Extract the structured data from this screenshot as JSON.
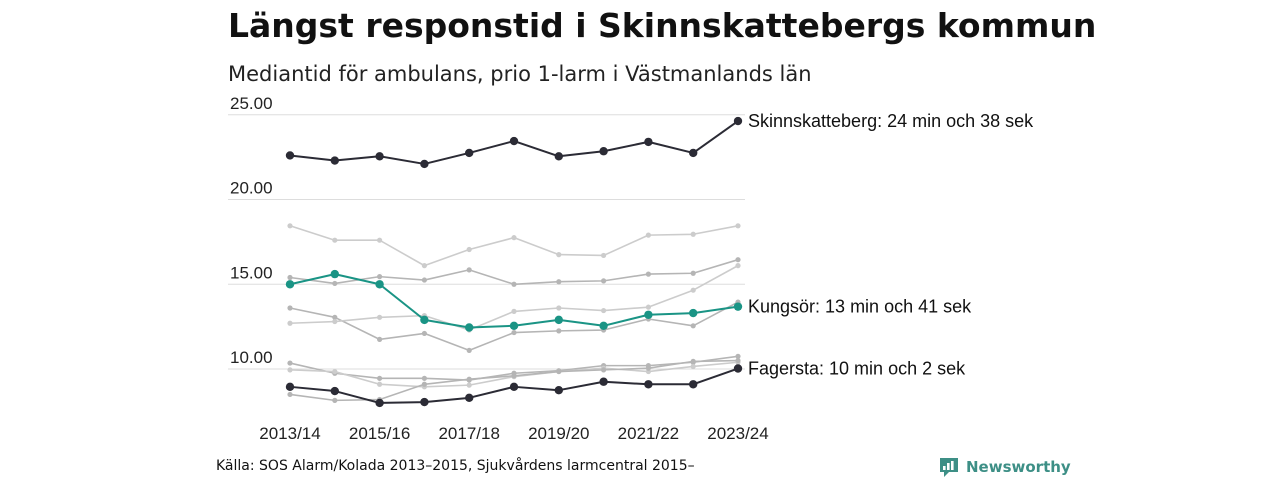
{
  "title": "Längst responstid i Skinnskattebergs kommun",
  "subtitle": "Mediantid för ambulans, prio 1-larm i Västmanlands län",
  "source": "Källa: SOS Alarm/Kolada 2013–2015, Sjukvårdens larmcentral 2015–",
  "brand": {
    "name": "Newsworthy",
    "icon": "newsworthy-logo-icon",
    "color": "#3d8f86"
  },
  "chart_data": {
    "type": "line",
    "x": [
      "2013/14",
      "2014/15",
      "2015/16",
      "2016/17",
      "2017/18",
      "2018/19",
      "2019/20",
      "2020/21",
      "2021/22",
      "2022/23",
      "2023/24"
    ],
    "x_tick_labels": [
      "2013/14",
      "2015/16",
      "2017/18",
      "2019/20",
      "2021/22",
      "2023/24"
    ],
    "y_ticks": [
      10,
      15,
      20,
      25
    ],
    "y_tick_labels": [
      "10.00",
      "15.00",
      "20.00",
      "25.00"
    ],
    "ylim": [
      7.7,
      25.4
    ],
    "grid": "horizontal",
    "series": [
      {
        "values": [
          18.45,
          17.6,
          17.6,
          16.1,
          17.05,
          17.75,
          16.75,
          16.7,
          17.9,
          17.95,
          18.45
        ],
        "color": "#cccccc",
        "highlight": false
      },
      {
        "values": [
          15.4,
          15.05,
          15.45,
          15.25,
          15.85,
          15.0,
          15.15,
          15.2,
          15.6,
          15.65,
          16.45
        ],
        "color": "#b5b5b5",
        "highlight": false
      },
      {
        "values": [
          13.6,
          13.05,
          11.75,
          12.1,
          11.1,
          12.15,
          12.25,
          12.3,
          12.95,
          12.55,
          13.95
        ],
        "color": "#b5b5b5",
        "highlight": false
      },
      {
        "values": [
          12.7,
          12.8,
          13.05,
          13.15,
          12.3,
          13.4,
          13.6,
          13.45,
          13.65,
          14.65,
          16.1
        ],
        "color": "#cccccc",
        "highlight": false
      },
      {
        "values": [
          10.35,
          9.75,
          9.45,
          9.45,
          9.35,
          9.75,
          9.9,
          10.2,
          10.2,
          10.4,
          10.75
        ],
        "color": "#b5b5b5",
        "highlight": false
      },
      {
        "values": [
          9.95,
          9.85,
          9.1,
          8.95,
          9.05,
          9.55,
          9.85,
          10.05,
          9.85,
          10.15,
          10.4
        ],
        "color": "#cccccc",
        "highlight": false
      },
      {
        "values": [
          8.5,
          8.15,
          8.2,
          9.1,
          9.4,
          9.6,
          9.85,
          9.95,
          10.05,
          10.45,
          10.5
        ],
        "color": "#b5b5b5",
        "highlight": false
      },
      {
        "name": "Kungsör",
        "values": [
          15.0,
          15.6,
          15.0,
          12.9,
          12.45,
          12.55,
          12.9,
          12.55,
          13.2,
          13.3,
          13.68
        ],
        "color": "#1a9485",
        "highlight": true,
        "label": "Kungsör: 13 min och 41 sek"
      },
      {
        "name": "Skinnskatteberg",
        "values": [
          22.6,
          22.3,
          22.55,
          22.1,
          22.75,
          23.45,
          22.55,
          22.85,
          23.4,
          22.75,
          24.63
        ],
        "color": "#2b2b35",
        "highlight": true,
        "label": "Skinnskatteberg: 24 min och 38 sek"
      },
      {
        "name": "Fagersta",
        "values": [
          8.95,
          8.7,
          8.0,
          8.05,
          8.3,
          8.95,
          8.75,
          9.25,
          9.1,
          9.1,
          10.03
        ],
        "color": "#2b2b35",
        "highlight": true,
        "label": "Fagersta: 10 min och 2 sek"
      }
    ]
  }
}
